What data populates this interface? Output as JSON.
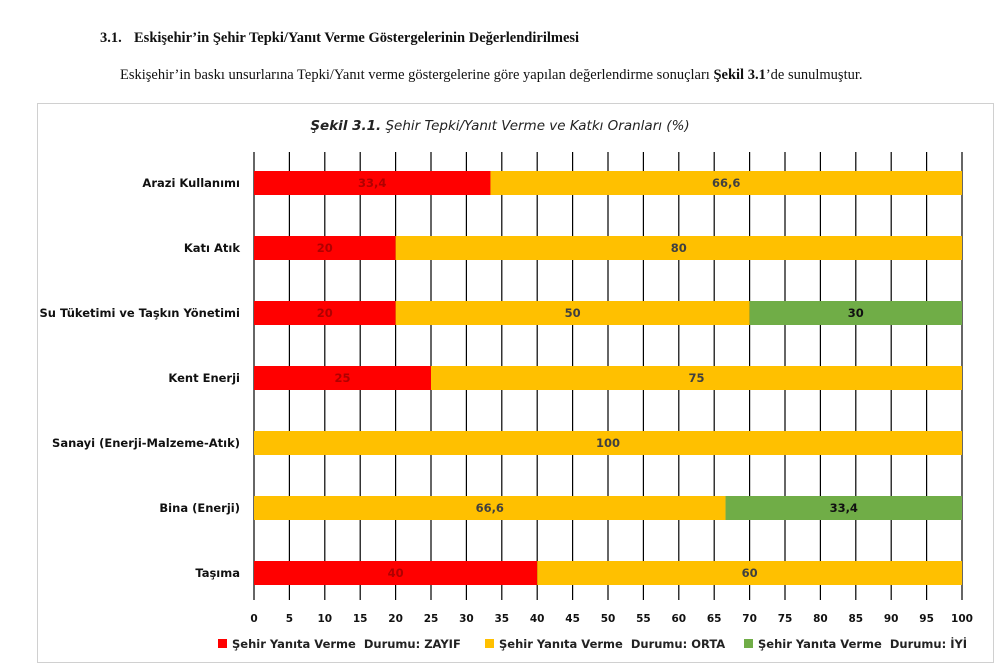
{
  "document": {
    "section_number": "3.1.",
    "section_title": "Eskişehir’in Şehir Tepki/Yanıt Verme Göstergelerinin Değerlendirilmesi",
    "paragraph_before": "Eskişehir’in baskı unsurlarına Tepki/Yanıt verme göstergelerine göre yapılan değerlendirme sonuçları ",
    "paragraph_ref": "Şekil 3.1",
    "paragraph_after": "’de sunulmuştur."
  },
  "chart_data": {
    "type": "bar",
    "orientation": "horizontal",
    "stacked": true,
    "title_prefix": "Şekil 3.1.",
    "title": "Şehir Tepki/Yanıt Verme ve Katkı Oranları (%)",
    "categories": [
      "Arazi Kullanımı",
      "Katı Atık",
      "Su Tüketimi ve Taşkın Yönetimi",
      "Kent Enerji",
      "Sanayi (Enerji-Malzeme-Atık)",
      "Bina (Enerji)",
      "Taşıma"
    ],
    "series": [
      {
        "name": "Şehir Yanıta Verme  Durumu: ZAYIF",
        "color": "#ff0000",
        "label_color": "#b00000",
        "values": [
          33.4,
          20,
          20,
          25,
          0,
          0,
          40
        ]
      },
      {
        "name": "Şehir Yanıta Verme  Durumu: ORTA",
        "color": "#ffc000",
        "label_color": "#404040",
        "values": [
          66.6,
          80,
          50,
          75,
          100,
          66.6,
          60
        ]
      },
      {
        "name": "Şehir Yanıta Verme  Durumu: İYİ",
        "color": "#70ad47",
        "label_color": "#111111",
        "values": [
          0,
          0,
          30,
          0,
          0,
          33.4,
          0
        ]
      }
    ],
    "data_labels": [
      [
        "33,4",
        "66,6",
        ""
      ],
      [
        "20",
        "80",
        ""
      ],
      [
        "20",
        "50",
        "30"
      ],
      [
        "25",
        "75",
        ""
      ],
      [
        "",
        "100",
        ""
      ],
      [
        "",
        "66,6",
        "33,4"
      ],
      [
        "40",
        "60",
        ""
      ]
    ],
    "xlim": [
      0,
      100
    ],
    "xticks": [
      "0",
      "5",
      "10",
      "15",
      "20",
      "25",
      "30",
      "35",
      "40",
      "45",
      "50",
      "55",
      "60",
      "65",
      "70",
      "75",
      "80",
      "85",
      "90",
      "95",
      "100"
    ],
    "grid": "vertical",
    "legend": "bottom"
  }
}
